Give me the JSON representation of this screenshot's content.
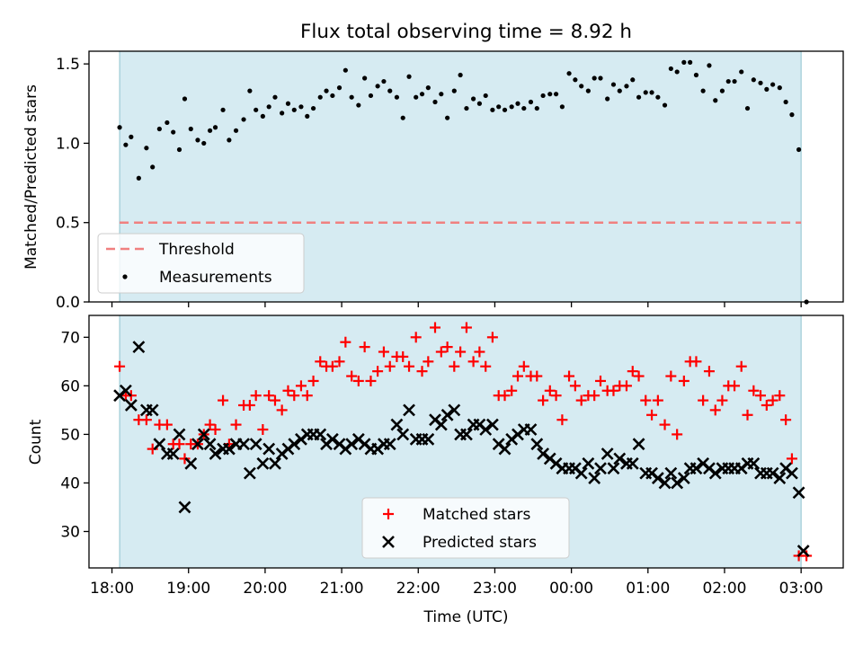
{
  "figure": {
    "title": "Flux total observing time = 8.92 h",
    "xlabel": "Time (UTC)",
    "x_ticks": [
      {
        "hour": 18,
        "label": "18:00"
      },
      {
        "hour": 19,
        "label": "19:00"
      },
      {
        "hour": 20,
        "label": "20:00"
      },
      {
        "hour": 21,
        "label": "21:00"
      },
      {
        "hour": 22,
        "label": "22:00"
      },
      {
        "hour": 23,
        "label": "23:00"
      },
      {
        "hour": 24,
        "label": "00:00"
      },
      {
        "hour": 25,
        "label": "01:00"
      },
      {
        "hour": 26,
        "label": "02:00"
      },
      {
        "hour": 27,
        "label": "03:00"
      }
    ],
    "xlim": [
      17.7,
      27.55
    ],
    "observing_window": [
      18.1,
      27.0
    ],
    "colors": {
      "window_fill": "#add8e6",
      "threshold": "#f08080",
      "measurements": "#000000",
      "matched": "#ff0000",
      "predicted": "#000000"
    }
  },
  "chart_data": [
    {
      "type": "scatter",
      "ylabel": "Matched/Predicted stars",
      "ylim": [
        0.0,
        1.58
      ],
      "yticks": [
        0.0,
        0.5,
        1.0,
        1.5
      ],
      "ytick_labels": [
        "0.0",
        "0.5",
        "1.0",
        "1.5"
      ],
      "legend": {
        "position": "lower-left",
        "threshold_label": "Threshold",
        "measurements_label": "Measurements"
      },
      "threshold": {
        "label": "Threshold",
        "value": 0.5,
        "x_range": [
          18.1,
          27.0
        ]
      },
      "series": [
        {
          "name": "Measurements",
          "x": [
            18.1,
            18.18,
            18.25,
            18.35,
            18.45,
            18.53,
            18.62,
            18.72,
            18.8,
            18.88,
            18.95,
            19.03,
            19.12,
            19.2,
            19.28,
            19.35,
            19.45,
            19.53,
            19.62,
            19.72,
            19.8,
            19.88,
            19.97,
            20.05,
            20.13,
            20.22,
            20.3,
            20.38,
            20.47,
            20.55,
            20.63,
            20.72,
            20.8,
            20.88,
            20.97,
            21.05,
            21.13,
            21.22,
            21.3,
            21.38,
            21.47,
            21.55,
            21.63,
            21.72,
            21.8,
            21.88,
            21.97,
            22.05,
            22.13,
            22.22,
            22.3,
            22.38,
            22.47,
            22.55,
            22.63,
            22.72,
            22.8,
            22.88,
            22.97,
            23.05,
            23.13,
            23.22,
            23.3,
            23.38,
            23.47,
            23.55,
            23.63,
            23.72,
            23.8,
            23.88,
            23.97,
            24.05,
            24.13,
            24.22,
            24.3,
            24.38,
            24.47,
            24.55,
            24.63,
            24.72,
            24.8,
            24.88,
            24.97,
            25.05,
            25.13,
            25.22,
            25.3,
            25.38,
            25.47,
            25.55,
            25.63,
            25.72,
            25.8,
            25.88,
            25.97,
            26.05,
            26.13,
            26.22,
            26.3,
            26.38,
            26.47,
            26.55,
            26.63,
            26.72,
            26.8,
            26.88,
            26.97,
            27.07
          ],
          "y": [
            1.1,
            0.99,
            1.04,
            0.78,
            0.97,
            0.85,
            1.09,
            1.13,
            1.07,
            0.96,
            1.28,
            1.09,
            1.02,
            1.0,
            1.08,
            1.1,
            1.21,
            1.02,
            1.08,
            1.15,
            1.33,
            1.21,
            1.17,
            1.23,
            1.29,
            1.19,
            1.25,
            1.21,
            1.23,
            1.17,
            1.22,
            1.29,
            1.33,
            1.3,
            1.35,
            1.46,
            1.29,
            1.24,
            1.41,
            1.3,
            1.36,
            1.39,
            1.33,
            1.29,
            1.16,
            1.42,
            1.29,
            1.31,
            1.35,
            1.26,
            1.31,
            1.16,
            1.33,
            1.43,
            1.22,
            1.28,
            1.25,
            1.3,
            1.21,
            1.23,
            1.21,
            1.23,
            1.25,
            1.22,
            1.26,
            1.22,
            1.3,
            1.31,
            1.31,
            1.23,
            1.44,
            1.4,
            1.36,
            1.33,
            1.41,
            1.41,
            1.28,
            1.37,
            1.33,
            1.36,
            1.4,
            1.29,
            1.32,
            1.32,
            1.29,
            1.24,
            1.47,
            1.45,
            1.51,
            1.51,
            1.43,
            1.33,
            1.49,
            1.27,
            1.33,
            1.39,
            1.39,
            1.45,
            1.22,
            1.4,
            1.38,
            1.34,
            1.37,
            1.35,
            1.26,
            1.18,
            0.96,
            0.0
          ]
        }
      ]
    },
    {
      "type": "scatter",
      "ylabel": "Count",
      "ylim": [
        22.5,
        74.5
      ],
      "yticks": [
        30,
        40,
        50,
        60,
        70
      ],
      "ytick_labels": [
        "30",
        "40",
        "50",
        "60",
        "70"
      ],
      "legend": {
        "position": "lower-center",
        "matched_label": "Matched stars",
        "predicted_label": "Predicted stars"
      },
      "series": [
        {
          "name": "Matched stars",
          "marker": "+",
          "x": [
            18.1,
            18.18,
            18.25,
            18.35,
            18.45,
            18.53,
            18.62,
            18.72,
            18.8,
            18.88,
            18.95,
            19.03,
            19.12,
            19.2,
            19.28,
            19.35,
            19.45,
            19.53,
            19.62,
            19.72,
            19.8,
            19.88,
            19.97,
            20.05,
            20.13,
            20.22,
            20.3,
            20.38,
            20.47,
            20.55,
            20.63,
            20.72,
            20.8,
            20.88,
            20.97,
            21.05,
            21.13,
            21.22,
            21.3,
            21.38,
            21.47,
            21.55,
            21.63,
            21.72,
            21.8,
            21.88,
            21.97,
            22.05,
            22.13,
            22.22,
            22.3,
            22.38,
            22.47,
            22.55,
            22.63,
            22.72,
            22.8,
            22.88,
            22.97,
            23.05,
            23.13,
            23.22,
            23.3,
            23.38,
            23.47,
            23.55,
            23.63,
            23.72,
            23.8,
            23.88,
            23.97,
            24.05,
            24.13,
            24.22,
            24.3,
            24.38,
            24.47,
            24.55,
            24.63,
            24.72,
            24.8,
            24.88,
            24.97,
            25.05,
            25.13,
            25.22,
            25.3,
            25.38,
            25.47,
            25.55,
            25.63,
            25.72,
            25.8,
            25.88,
            25.97,
            26.05,
            26.13,
            26.22,
            26.3,
            26.38,
            26.47,
            26.55,
            26.63,
            26.72,
            26.8,
            26.88,
            26.97,
            27.07
          ],
          "y": [
            64,
            58,
            58,
            53,
            53,
            47,
            52,
            52,
            48,
            48,
            45,
            48,
            48,
            50,
            52,
            51,
            57,
            48,
            52,
            56,
            56,
            58,
            51,
            58,
            57,
            55,
            59,
            58,
            60,
            58,
            61,
            65,
            64,
            64,
            65,
            69,
            62,
            61,
            68,
            61,
            63,
            67,
            64,
            66,
            66,
            64,
            70,
            63,
            65,
            72,
            67,
            68,
            64,
            67,
            72,
            65,
            67,
            64,
            70,
            58,
            58,
            59,
            62,
            64,
            62,
            62,
            57,
            59,
            58,
            53,
            62,
            60,
            57,
            58,
            58,
            61,
            59,
            59,
            60,
            60,
            63,
            62,
            57,
            54,
            57,
            52,
            62,
            50,
            61,
            65,
            65,
            57,
            63,
            55,
            57,
            60,
            60,
            64,
            54,
            59,
            58,
            56,
            57,
            58,
            53,
            45,
            25,
            25
          ]
        },
        {
          "name": "Predicted stars",
          "marker": "x",
          "x": [
            18.1,
            18.18,
            18.25,
            18.35,
            18.45,
            18.53,
            18.62,
            18.72,
            18.8,
            18.88,
            18.95,
            19.03,
            19.12,
            19.2,
            19.28,
            19.35,
            19.45,
            19.53,
            19.62,
            19.72,
            19.8,
            19.88,
            19.97,
            20.05,
            20.13,
            20.22,
            20.3,
            20.38,
            20.47,
            20.55,
            20.63,
            20.72,
            20.8,
            20.88,
            20.97,
            21.05,
            21.13,
            21.22,
            21.3,
            21.38,
            21.47,
            21.55,
            21.63,
            21.72,
            21.8,
            21.88,
            21.97,
            22.05,
            22.13,
            22.22,
            22.3,
            22.38,
            22.47,
            22.55,
            22.63,
            22.72,
            22.8,
            22.88,
            22.97,
            23.05,
            23.13,
            23.22,
            23.3,
            23.38,
            23.47,
            23.55,
            23.63,
            23.72,
            23.8,
            23.88,
            23.97,
            24.05,
            24.13,
            24.22,
            24.3,
            24.38,
            24.47,
            24.55,
            24.63,
            24.72,
            24.8,
            24.88,
            24.97,
            25.05,
            25.13,
            25.22,
            25.3,
            25.38,
            25.47,
            25.55,
            25.63,
            25.72,
            25.8,
            25.88,
            25.97,
            26.05,
            26.13,
            26.22,
            26.3,
            26.38,
            26.47,
            26.55,
            26.63,
            26.72,
            26.8,
            26.88,
            26.97,
            27.03
          ],
          "y": [
            58,
            59,
            56,
            68,
            55,
            55,
            48,
            46,
            46,
            50,
            35,
            44,
            48,
            50,
            48,
            46,
            47,
            47,
            48,
            48,
            42,
            48,
            44,
            47,
            44,
            46,
            47,
            48,
            49,
            50,
            50,
            50,
            48,
            49,
            48,
            47,
            48,
            49,
            48,
            47,
            47,
            48,
            48,
            52,
            50,
            55,
            49,
            49,
            49,
            53,
            52,
            54,
            55,
            50,
            50,
            52,
            52,
            51,
            52,
            48,
            47,
            49,
            50,
            51,
            51,
            48,
            46,
            45,
            44,
            43,
            43,
            43,
            42,
            44,
            41,
            43,
            46,
            43,
            45,
            44,
            44,
            48,
            42,
            42,
            41,
            40,
            42,
            40,
            41,
            43,
            43,
            44,
            43,
            42,
            43,
            43,
            43,
            43,
            44,
            44,
            42,
            42,
            42,
            41,
            43,
            42,
            38,
            26
          ]
        }
      ]
    }
  ]
}
